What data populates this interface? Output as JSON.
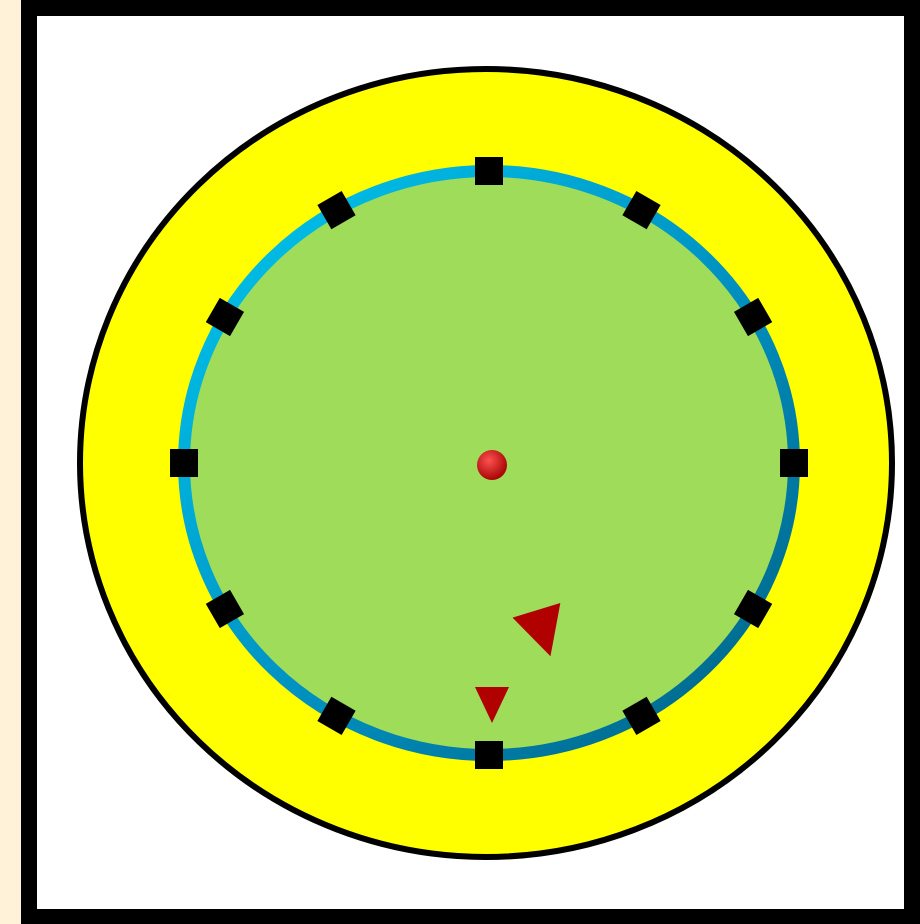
{
  "clock": {
    "time_shown": {
      "hour": 5,
      "minute": 30
    },
    "tick_count": 12,
    "colors": {
      "background": "#fff2d8",
      "frame": "#000000",
      "panel": "#ffffff",
      "bezel": "#ffff00",
      "rim_light": "#00c8f0",
      "rim_dark": "#005f80",
      "face": "#9edc5a",
      "ticks": "#000000",
      "hands": "#b00000",
      "hand_highlight": "#e02020"
    },
    "icons": {
      "hour_hand": "hour-hand-icon",
      "minute_hand": "minute-hand-icon",
      "center_pin": "center-pin-icon"
    }
  }
}
